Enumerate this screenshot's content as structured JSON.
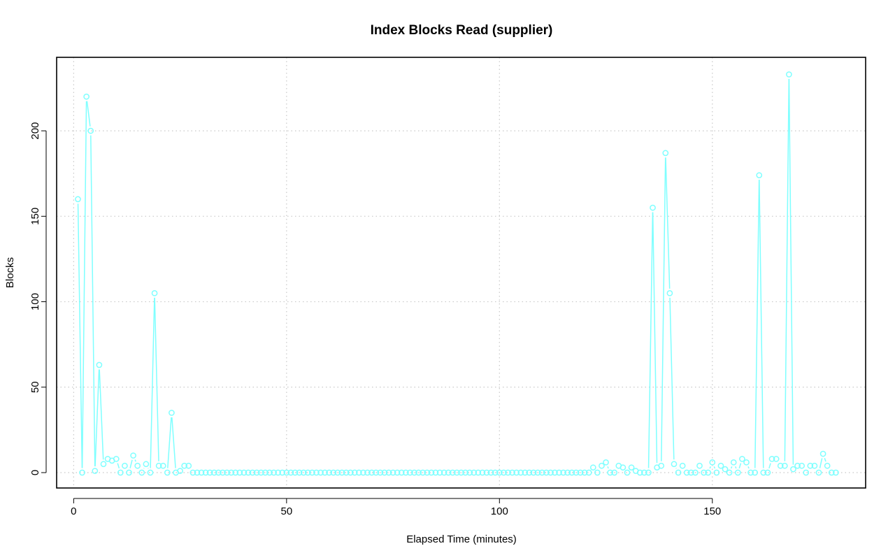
{
  "chart_data": {
    "type": "line",
    "title": "Index Blocks Read (supplier)",
    "xlabel": "Elapsed Time (minutes)",
    "ylabel": "Blocks",
    "xlim": [
      -4,
      186
    ],
    "ylim": [
      -9,
      243
    ],
    "xticks": [
      0,
      50,
      100,
      150
    ],
    "yticks": [
      0,
      50,
      100,
      150,
      200
    ],
    "grid": true,
    "line_color": "#7FFFFF",
    "series": [
      {
        "x": [
          1,
          2,
          3,
          4,
          5,
          6,
          7,
          8,
          9,
          10,
          11,
          12,
          13,
          14,
          15,
          16,
          17,
          18,
          19,
          20,
          21,
          22,
          23,
          24,
          25,
          26,
          27,
          28,
          29,
          30,
          31,
          32,
          33,
          34,
          35,
          36,
          37,
          38,
          39,
          40,
          41,
          42,
          43,
          44,
          45,
          46,
          47,
          48,
          49,
          50,
          51,
          52,
          53,
          54,
          55,
          56,
          57,
          58,
          59,
          60,
          61,
          62,
          63,
          64,
          65,
          66,
          67,
          68,
          69,
          70,
          71,
          72,
          73,
          74,
          75,
          76,
          77,
          78,
          79,
          80,
          81,
          82,
          83,
          84,
          85,
          86,
          87,
          88,
          89,
          90,
          91,
          92,
          93,
          94,
          95,
          96,
          97,
          98,
          99,
          100,
          101,
          102,
          103,
          104,
          105,
          106,
          107,
          108,
          109,
          110,
          111,
          112,
          113,
          114,
          115,
          116,
          117,
          118,
          119,
          120,
          121,
          122,
          123,
          124,
          125,
          126,
          127,
          128,
          129,
          130,
          131,
          132,
          133,
          134,
          135,
          136,
          137,
          138,
          139,
          140,
          141,
          142,
          143,
          144,
          145,
          146,
          147,
          148,
          149,
          150,
          151,
          152,
          153,
          154,
          155,
          156,
          157,
          158,
          159,
          160,
          161,
          162,
          163,
          164,
          165,
          166,
          167,
          168,
          169,
          170,
          171,
          172,
          173,
          174,
          175,
          176,
          177,
          178,
          179
        ],
        "values": [
          160,
          0,
          220,
          200,
          1,
          63,
          5,
          8,
          7,
          8,
          0,
          4,
          0,
          10,
          4,
          0,
          5,
          0,
          105,
          4,
          4,
          0,
          35,
          0,
          1,
          4,
          4,
          0,
          0,
          0,
          0,
          0,
          0,
          0,
          0,
          0,
          0,
          0,
          0,
          0,
          0,
          0,
          0,
          0,
          0,
          0,
          0,
          0,
          0,
          0,
          0,
          0,
          0,
          0,
          0,
          0,
          0,
          0,
          0,
          0,
          0,
          0,
          0,
          0,
          0,
          0,
          0,
          0,
          0,
          0,
          0,
          0,
          0,
          0,
          0,
          0,
          0,
          0,
          0,
          0,
          0,
          0,
          0,
          0,
          0,
          0,
          0,
          0,
          0,
          0,
          0,
          0,
          0,
          0,
          0,
          0,
          0,
          0,
          0,
          0,
          0,
          0,
          0,
          0,
          0,
          0,
          0,
          0,
          0,
          0,
          0,
          0,
          0,
          0,
          0,
          0,
          0,
          0,
          0,
          0,
          0,
          3,
          0,
          4,
          6,
          0,
          0,
          4,
          3,
          0,
          3,
          1,
          0,
          0,
          0,
          155,
          3,
          4,
          187,
          105,
          5,
          0,
          4,
          0,
          0,
          0,
          4,
          0,
          0,
          6,
          0,
          4,
          2,
          0,
          6,
          0,
          8,
          6,
          0,
          0,
          174,
          0,
          0,
          8,
          8,
          4,
          4,
          233,
          2,
          4,
          4,
          0,
          4,
          4,
          0,
          11,
          4,
          0,
          0
        ]
      }
    ]
  }
}
